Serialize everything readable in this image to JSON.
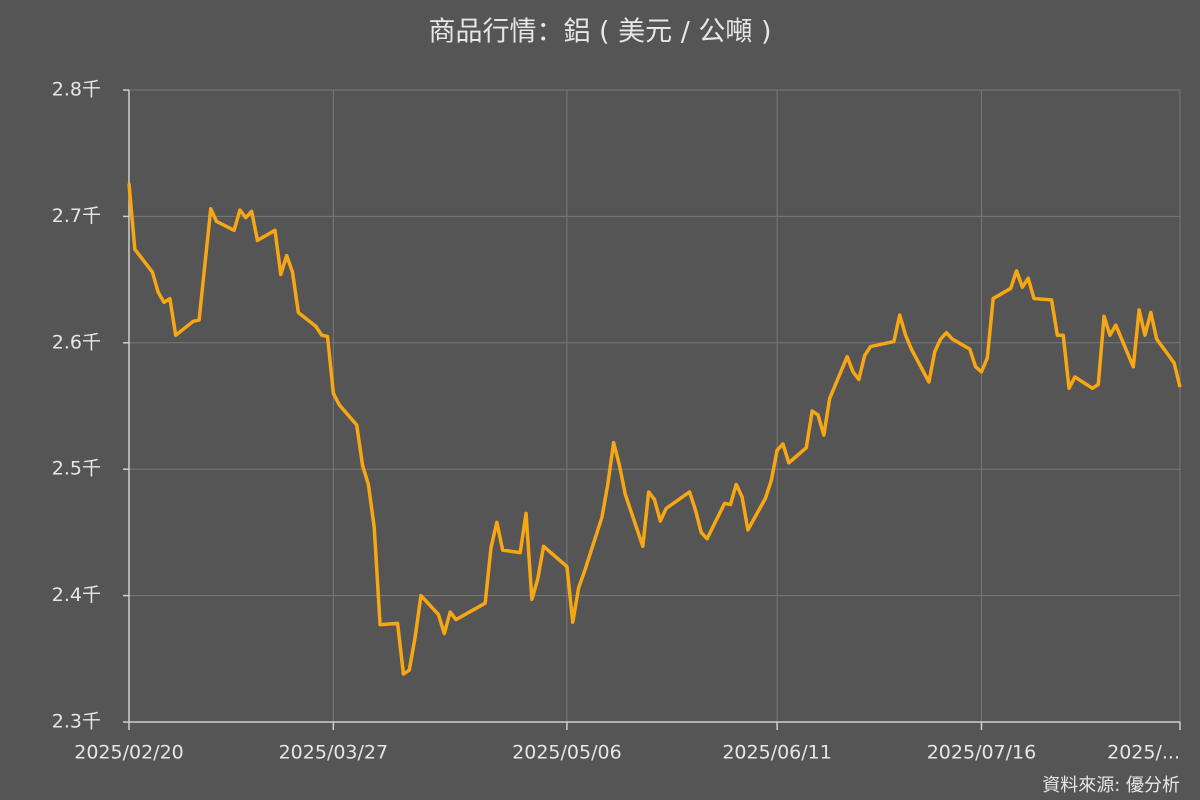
{
  "chart_data": {
    "type": "line",
    "title": "商品行情：鋁 ( 美元 / 公噸 )",
    "source": "資料來源: 優分析",
    "x": [
      "2025/02/20",
      "2025/02/21",
      "2025/02/24",
      "2025/02/25",
      "2025/02/26",
      "2025/02/27",
      "2025/02/28",
      "2025/03/03",
      "2025/03/04",
      "2025/03/06",
      "2025/03/07",
      "2025/03/10",
      "2025/03/11",
      "2025/03/12",
      "2025/03/13",
      "2025/03/14",
      "2025/03/17",
      "2025/03/18",
      "2025/03/19",
      "2025/03/20",
      "2025/03/21",
      "2025/03/24",
      "2025/03/25",
      "2025/03/26",
      "2025/03/27",
      "2025/03/28",
      "2025/03/31",
      "2025/04/01",
      "2025/04/02",
      "2025/04/03",
      "2025/04/04",
      "2025/04/07",
      "2025/04/08",
      "2025/04/09",
      "2025/04/10",
      "2025/04/11",
      "2025/04/14",
      "2025/04/15",
      "2025/04/16",
      "2025/04/17",
      "2025/04/22",
      "2025/04/23",
      "2025/04/24",
      "2025/04/25",
      "2025/04/28",
      "2025/04/29",
      "2025/04/30",
      "2025/05/01",
      "2025/05/02",
      "2025/05/06",
      "2025/05/07",
      "2025/05/08",
      "2025/05/09",
      "2025/05/12",
      "2025/05/13",
      "2025/05/14",
      "2025/05/15",
      "2025/05/16",
      "2025/05/19",
      "2025/05/20",
      "2025/05/21",
      "2025/05/22",
      "2025/05/23",
      "2025/05/27",
      "2025/05/28",
      "2025/05/29",
      "2025/05/30",
      "2025/06/02",
      "2025/06/03",
      "2025/06/04",
      "2025/06/05",
      "2025/06/06",
      "2025/06/09",
      "2025/06/10",
      "2025/06/11",
      "2025/06/12",
      "2025/06/13",
      "2025/06/16",
      "2025/06/17",
      "2025/06/18",
      "2025/06/19",
      "2025/06/20",
      "2025/06/23",
      "2025/06/24",
      "2025/06/25",
      "2025/06/26",
      "2025/06/27",
      "2025/07/01",
      "2025/07/02",
      "2025/07/03",
      "2025/07/04",
      "2025/07/07",
      "2025/07/08",
      "2025/07/09",
      "2025/07/10",
      "2025/07/11",
      "2025/07/14",
      "2025/07/15",
      "2025/07/16",
      "2025/07/17",
      "2025/07/18",
      "2025/07/21",
      "2025/07/22",
      "2025/07/23",
      "2025/07/24",
      "2025/07/25",
      "2025/07/28",
      "2025/07/29",
      "2025/07/30",
      "2025/07/31",
      "2025/08/01",
      "2025/08/04",
      "2025/08/05",
      "2025/08/06",
      "2025/08/07",
      "2025/08/08",
      "2025/08/11",
      "2025/08/12",
      "2025/08/13",
      "2025/08/14",
      "2025/08/15",
      "2025/08/18",
      "2025/08/19"
    ],
    "series": [
      {
        "name": "鋁",
        "color": "#f7a614",
        "values": [
          2726,
          2674,
          2656,
          2640,
          2632,
          2635,
          2606,
          2617,
          2618,
          2706,
          2696,
          2689,
          2705,
          2699,
          2704,
          2681,
          2689,
          2654,
          2669,
          2656,
          2624,
          2613,
          2606,
          2605,
          2560,
          2551,
          2535,
          2503,
          2488,
          2454,
          2377,
          2378,
          2338,
          2341,
          2367,
          2400,
          2385,
          2370,
          2387,
          2381,
          2394,
          2438,
          2458,
          2436,
          2434,
          2465,
          2397,
          2413,
          2439,
          2423,
          2379,
          2406,
          2419,
          2462,
          2488,
          2521,
          2503,
          2480,
          2439,
          2482,
          2476,
          2459,
          2469,
          2482,
          2468,
          2450,
          2445,
          2473,
          2472,
          2488,
          2478,
          2452,
          2477,
          2491,
          2515,
          2520,
          2505,
          2517,
          2546,
          2543,
          2527,
          2556,
          2589,
          2577,
          2571,
          2590,
          2597,
          2601,
          2622,
          2606,
          2595,
          2569,
          2593,
          2603,
          2608,
          2603,
          2595,
          2581,
          2577,
          2588,
          2635,
          2643,
          2657,
          2644,
          2651,
          2635,
          2634,
          2606,
          2606,
          2564,
          2573,
          2564,
          2567,
          2621,
          2606,
          2614,
          2581,
          2626,
          2606,
          2624,
          2603,
          2584,
          2565
        ]
      }
    ],
    "xlim": [
      "2025/02/20",
      "2025/08/19"
    ],
    "xticks": [
      "2025/02/20",
      "2025/03/27",
      "2025/05/06",
      "2025/06/11",
      "2025/07/16",
      {
        "value": "2025/08/19",
        "label": "2025/..."
      }
    ],
    "ylim": [
      2300,
      2800
    ],
    "yticks": [
      {
        "value": 2300,
        "label": "2.3千"
      },
      {
        "value": 2400,
        "label": "2.4千"
      },
      {
        "value": 2500,
        "label": "2.5千"
      },
      {
        "value": 2600,
        "label": "2.6千"
      },
      {
        "value": 2700,
        "label": "2.7千"
      },
      {
        "value": 2800,
        "label": "2.8千"
      }
    ],
    "grid": true
  }
}
